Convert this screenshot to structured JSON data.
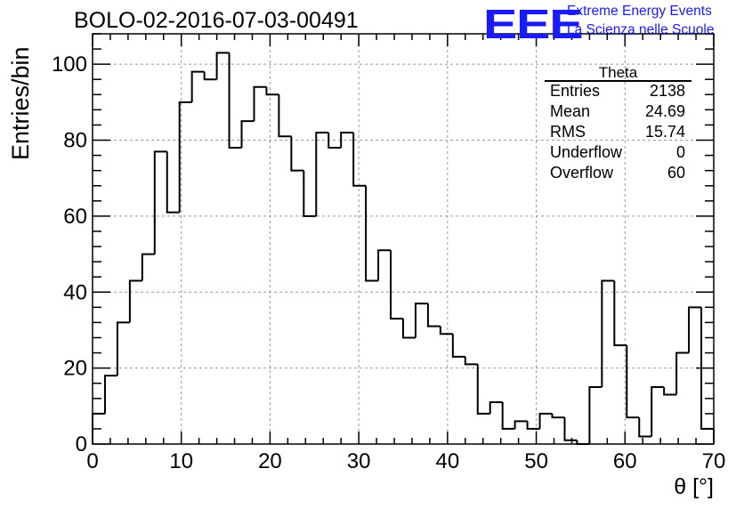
{
  "title": "BOLO-02-2016-07-03-00491",
  "logo": {
    "mark": "EEE",
    "line1": "Extreme Energy Events",
    "line2": "La Scienza nelle Scuole",
    "color": "#1a1aff"
  },
  "stats": {
    "title": "Theta",
    "rows": [
      {
        "label": "Entries",
        "value": "2138"
      },
      {
        "label": "Mean",
        "value": "24.69"
      },
      {
        "label": "RMS",
        "value": "15.74"
      },
      {
        "label": "Underflow",
        "value": "0"
      },
      {
        "label": "Overflow",
        "value": "60"
      }
    ]
  },
  "chart_data": {
    "type": "bar",
    "histogram": true,
    "bin_width": 1.4,
    "xlim": [
      0,
      70
    ],
    "ylim": [
      0,
      108
    ],
    "xlabel": "θ [°]",
    "ylabel": "Entries/bin",
    "xticks": [
      0,
      10,
      20,
      30,
      40,
      50,
      60,
      70
    ],
    "xtick_labels": [
      "0",
      "10",
      "20",
      "30",
      "40",
      "50",
      "60",
      "70"
    ],
    "yticks": [
      0,
      20,
      40,
      60,
      80,
      100
    ],
    "ytick_labels": [
      "0",
      "20",
      "40",
      "60",
      "80",
      "100"
    ],
    "grid": true,
    "bin_edges_start": 0,
    "values": [
      8,
      18,
      32,
      43,
      50,
      77,
      61,
      90,
      98,
      96,
      103,
      78,
      85,
      94,
      92,
      81,
      72,
      60,
      82,
      78,
      82,
      68,
      43,
      51,
      33,
      28,
      37,
      31,
      29,
      23,
      21,
      8,
      11,
      4,
      6,
      4,
      8,
      7,
      1,
      0,
      15,
      43,
      26,
      7,
      2,
      15,
      13,
      24,
      36,
      4
    ]
  }
}
